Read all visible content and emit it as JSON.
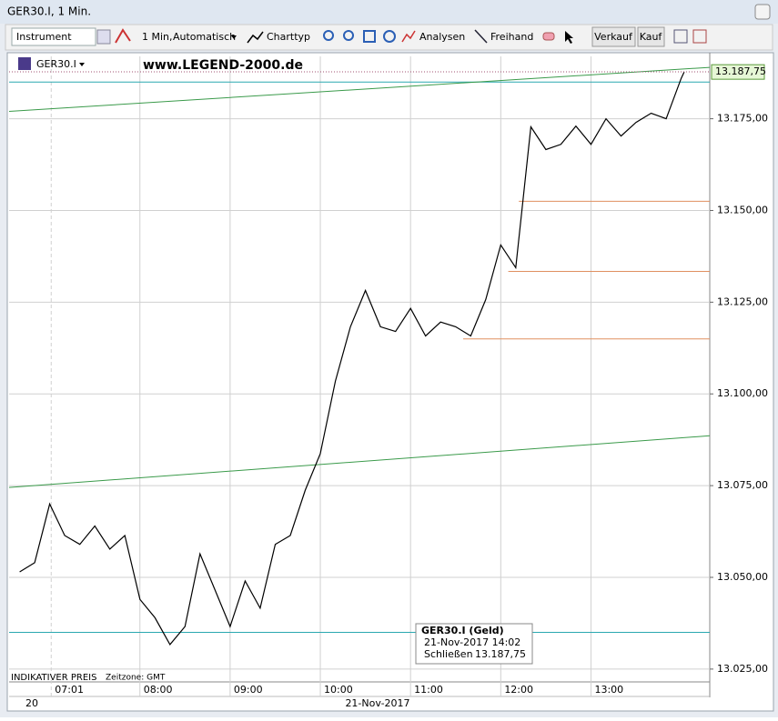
{
  "window": {
    "title": "GER30.I, 1 Min."
  },
  "toolbar": {
    "instrument": "Instrument",
    "interval": "1 Min,",
    "mode": "Automatisch",
    "charttype": "Charttyp",
    "analyses": "Analysen",
    "freehand": "Freihand",
    "sell": "Verkauf",
    "buy": "Kauf"
  },
  "chart_data": {
    "type": "line",
    "symbol": "GER30.I",
    "watermark": "www.LEGEND-2000.de",
    "footer": "INDIKATIVER PREIS",
    "timezone": "Zeitzone: GMT",
    "color": "#000000",
    "x": [
      "06:40",
      "06:50",
      "07:00",
      "07:10",
      "07:20",
      "07:30",
      "07:40",
      "07:50",
      "08:00",
      "08:10",
      "08:20",
      "08:30",
      "08:40",
      "08:50",
      "09:00",
      "09:10",
      "09:20",
      "09:30",
      "09:40",
      "09:50",
      "10:00",
      "10:10",
      "10:20",
      "10:30",
      "10:40",
      "10:50",
      "11:00",
      "11:10",
      "11:20",
      "11:30",
      "11:40",
      "11:50",
      "12:00",
      "12:10",
      "12:20",
      "12:30",
      "12:40",
      "12:50",
      "13:00",
      "13:10",
      "13:20",
      "13:30",
      "13:40",
      "13:50",
      "14:00",
      "14:02"
    ],
    "values": [
      13051.5,
      13054,
      13070,
      13061.4,
      13059,
      13064,
      13057.7,
      13061.4,
      13044,
      13039,
      13031.7,
      13036.6,
      13056.4,
      13046.5,
      13036.6,
      13049,
      13041.6,
      13059,
      13061.4,
      13073.8,
      13083.7,
      13103.5,
      13118.3,
      13128.2,
      13118.3,
      13117,
      13123.3,
      13115.8,
      13119.6,
      13118.3,
      13115.8,
      13125.7,
      13140.6,
      13134.4,
      13172.8,
      13166.6,
      13168,
      13173,
      13168,
      13175,
      13170.3,
      13174,
      13176.5,
      13175,
      13186,
      13187.75
    ],
    "xlim": [
      "06:33",
      "14:19"
    ],
    "xticks": [
      "07:01",
      "08:00",
      "09:00",
      "10:00",
      "11:00",
      "12:00",
      "13:00"
    ],
    "date_row": [
      "20",
      "21-Nov-2017"
    ],
    "ylim": [
      13022,
      13192
    ],
    "yticks": [
      {
        "value": 13025,
        "label": "13.025,00"
      },
      {
        "value": 13050,
        "label": "13.050,00"
      },
      {
        "value": 13075,
        "label": "13.075,00"
      },
      {
        "value": 13100,
        "label": "13.100,00"
      },
      {
        "value": 13125,
        "label": "13.125,00"
      },
      {
        "value": 13150,
        "label": "13.150,00"
      },
      {
        "value": 13175,
        "label": "13.175,00"
      }
    ],
    "grid": true,
    "last_price": {
      "value": 13187.75,
      "label": "13.187,75"
    },
    "hlines": [
      {
        "value": 13185,
        "color": "#2aa8b0"
      },
      {
        "value": 13035,
        "color": "#2aa8b0"
      },
      {
        "x": "11:35",
        "value": 13115,
        "color": "#e09060"
      },
      {
        "x": "12:05",
        "value": 13133.4,
        "color": "#e09060"
      },
      {
        "x": "12:12",
        "value": 13152.5,
        "color": "#e09060"
      }
    ],
    "trendlines": [
      {
        "x": [
          "06:33",
          "14:19"
        ],
        "values": [
          13177,
          13189
        ],
        "color": "#3a9a4a"
      },
      {
        "x": [
          "06:33",
          "14:19"
        ],
        "values": [
          13074.5,
          13088.6
        ],
        "color": "#3a9a4a"
      }
    ],
    "tooltip": {
      "title": "GER30.I (Geld)",
      "time": "21-Nov-2017 14:02",
      "close_label": "Schließen"
    }
  }
}
